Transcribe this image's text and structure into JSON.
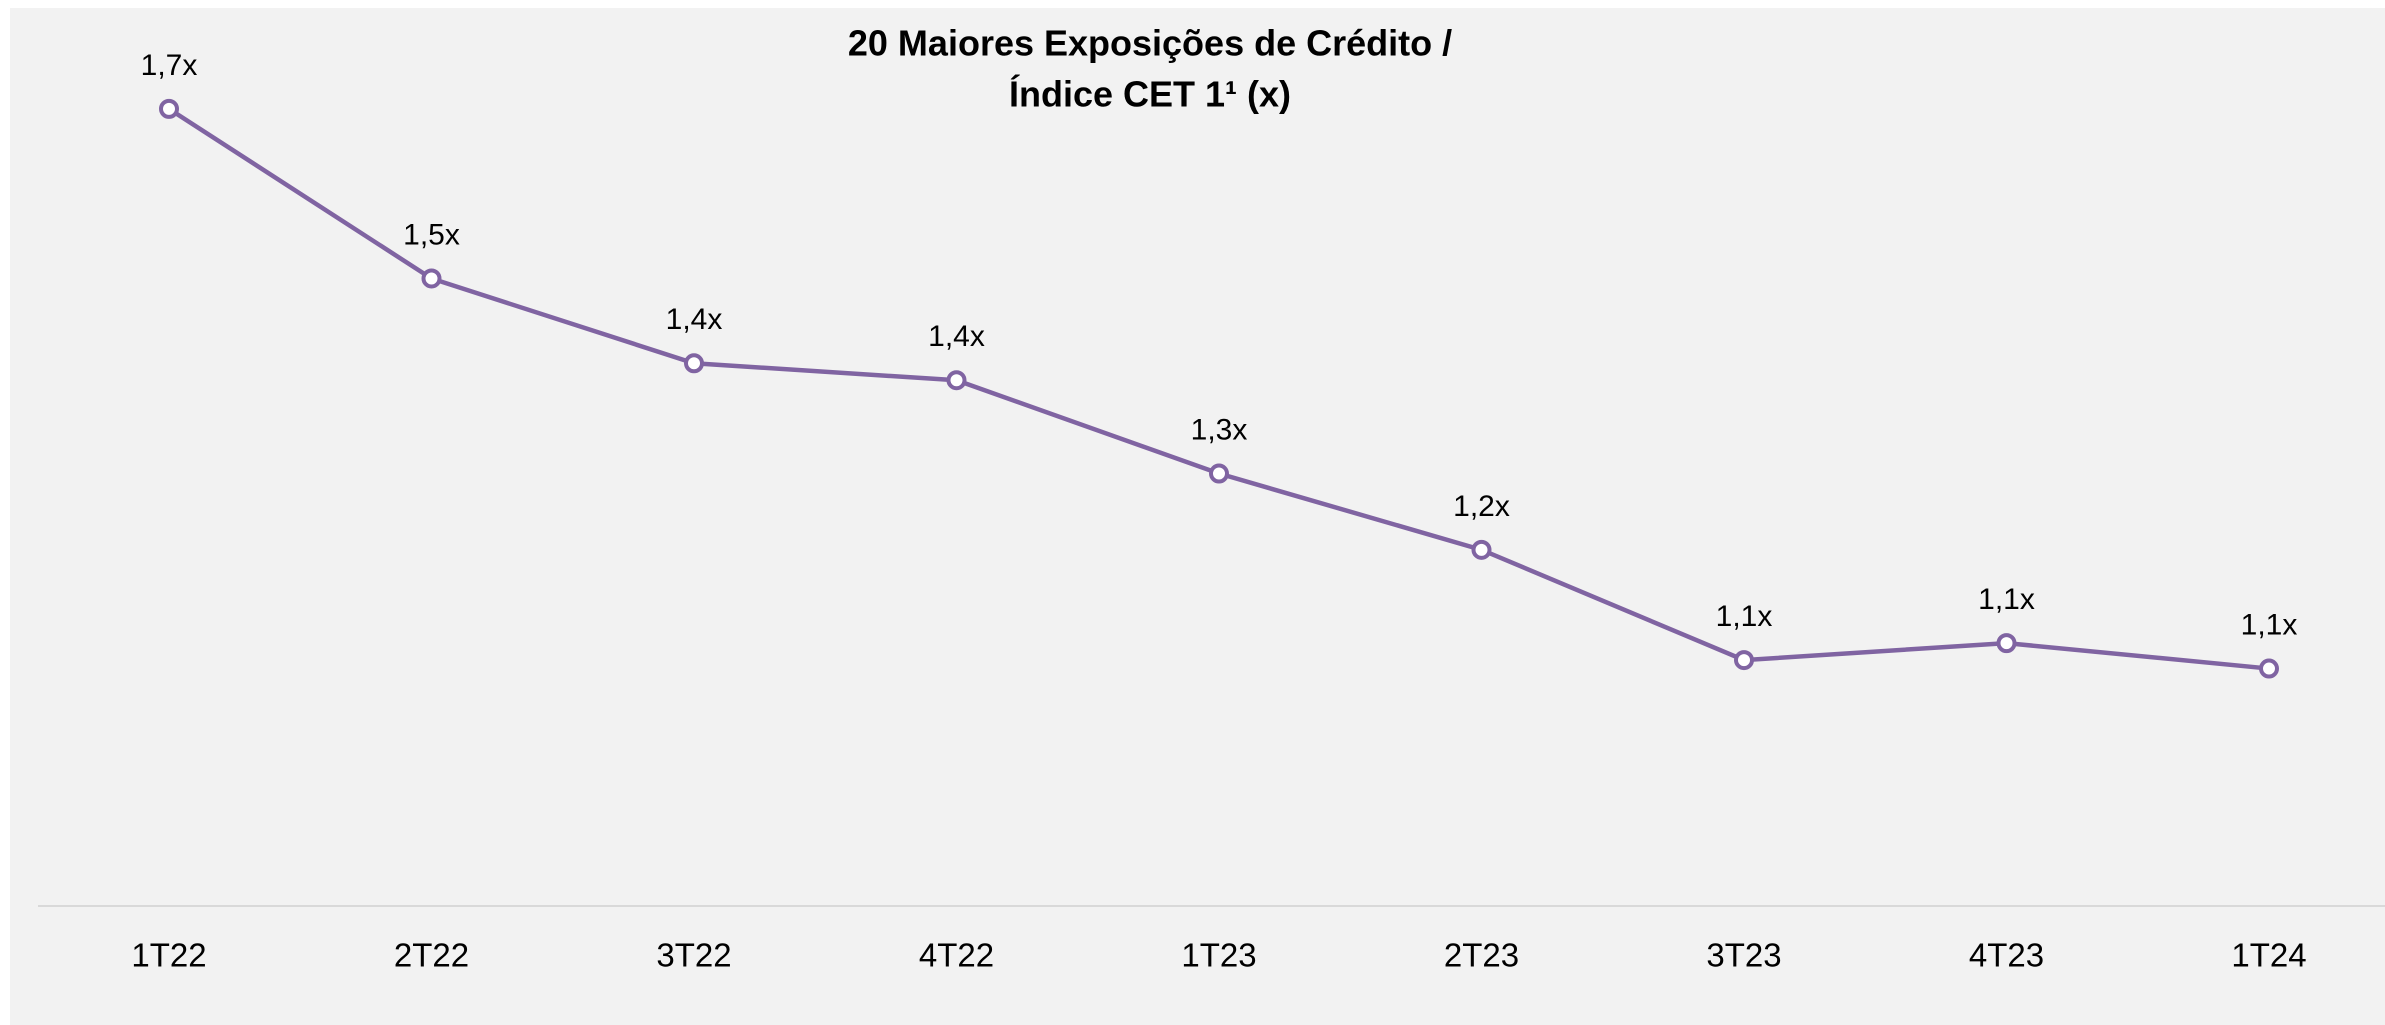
{
  "chart_data": {
    "type": "line",
    "title": [
      "20 Maiores Exposições de Crédito /",
      "Índice CET 1¹ (x)"
    ],
    "categories": [
      "1T22",
      "2T22",
      "3T22",
      "4T22",
      "1T23",
      "2T23",
      "3T23",
      "4T23",
      "1T24"
    ],
    "series": [
      {
        "color": "#8064a2",
        "values": [
          1.74,
          1.54,
          1.44,
          1.42,
          1.31,
          1.22,
          1.09,
          1.11,
          1.08
        ],
        "value_labels": [
          "1,7x",
          "1,5x",
          "1,4x",
          "1,4x",
          "1,3x",
          "1,2x",
          "1,1x",
          "1,1x",
          "1,1x"
        ]
      }
    ],
    "ylim": [
      0.8,
      1.8
    ]
  }
}
